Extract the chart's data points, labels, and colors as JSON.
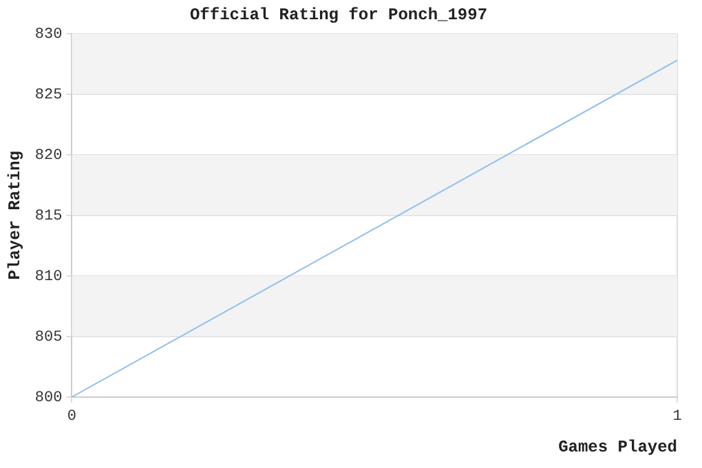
{
  "chart_data": {
    "type": "line",
    "title": "Official Rating for Ponch_1997",
    "xlabel": "Games Played",
    "ylabel": "Player Rating",
    "x": [
      0,
      1
    ],
    "series": [
      {
        "color": "#90bff0",
        "values": [
          800,
          827.8
        ]
      }
    ],
    "xlim": [
      0,
      1
    ],
    "xticks": [
      0,
      1
    ],
    "ylim": [
      800,
      830
    ],
    "yticks": [
      800,
      805,
      810,
      815,
      820,
      825,
      830
    ],
    "grid": true,
    "legend": false,
    "marker": "none",
    "line_style": "solid"
  }
}
